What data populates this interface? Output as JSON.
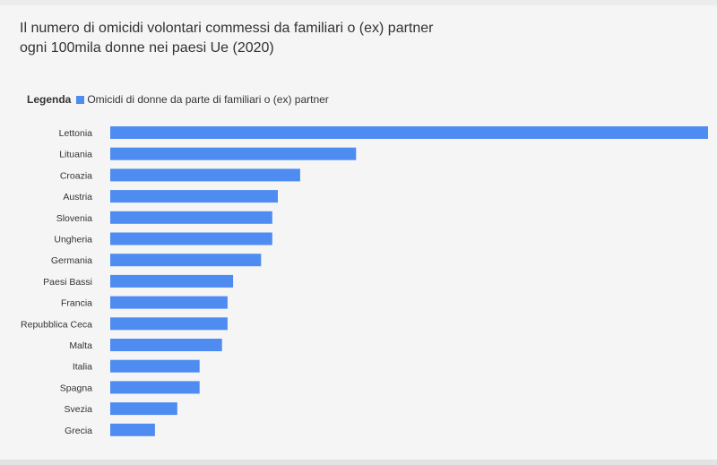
{
  "title_line1": "Il numero di omicidi volontari commessi da familiari o (ex) partner",
  "title_line2": "ogni 100mila donne nei paesi Ue (2020)",
  "legend": {
    "title": "Legenda",
    "label": "Omicidi di donne da parte di familiari o (ex) partner"
  },
  "colors": {
    "bar": "#4e8cf1",
    "text": "#333333",
    "background": "#f5f5f5"
  },
  "chart_data": {
    "type": "bar",
    "orientation": "horizontal",
    "title": "Il numero di omicidi volontari commessi da familiari o (ex) partner ogni 100mila donne nei paesi Ue (2020)",
    "xlabel": "",
    "ylabel": "",
    "legend_placement": "top-left",
    "grid": false,
    "xlim": [
      0,
      1.07
    ],
    "categories": [
      "Lettonia",
      "Lituania",
      "Croazia",
      "Austria",
      "Slovenia",
      "Ungheria",
      "Germania",
      "Paesi Bassi",
      "Francia",
      "Repubblica Ceca",
      "Malta",
      "Italia",
      "Spagna",
      "Svezia",
      "Grecia"
    ],
    "series": [
      {
        "name": "Omicidi di donne da parte di familiari o (ex) partner",
        "values": [
          1.07,
          0.44,
          0.34,
          0.3,
          0.29,
          0.29,
          0.27,
          0.22,
          0.21,
          0.21,
          0.2,
          0.16,
          0.16,
          0.12,
          0.08
        ]
      }
    ]
  }
}
